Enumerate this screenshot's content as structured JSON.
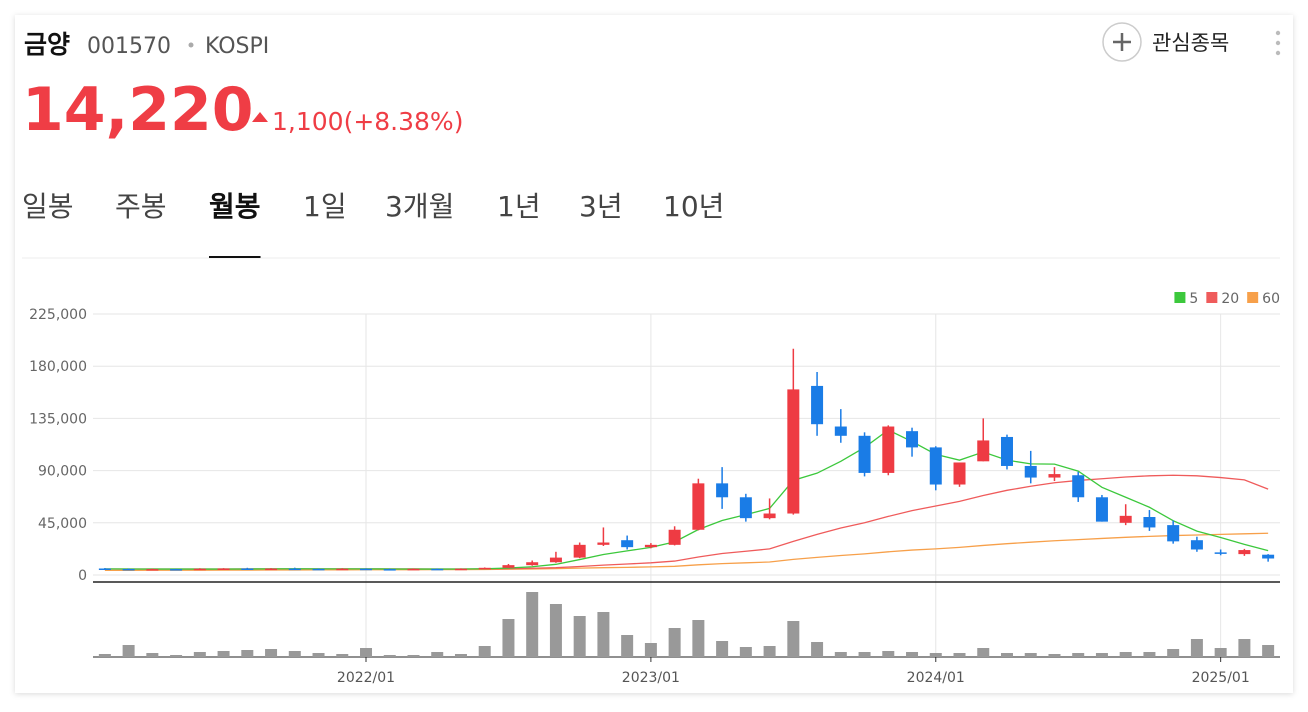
{
  "header": {
    "name": "금양",
    "code": "001570",
    "market": "KOSPI",
    "price": "14,220",
    "change": "1,100(+8.38%)",
    "watch_button": "관심종목"
  },
  "tabs": {
    "items": [
      "일봉",
      "주봉",
      "월봉",
      "1일",
      "3개월",
      "1년",
      "3년",
      "10년"
    ],
    "active": 2
  },
  "chart_data": {
    "type": "candlestick",
    "categories": [
      null,
      null,
      null,
      null,
      null,
      null,
      null,
      null,
      null,
      null,
      null,
      "2022/01",
      null,
      null,
      null,
      null,
      null,
      null,
      null,
      null,
      null,
      null,
      null,
      "2023/01",
      null,
      null,
      null,
      null,
      null,
      null,
      null,
      null,
      null,
      null,
      null,
      "2024/01",
      null,
      null,
      null,
      null,
      null,
      null,
      null,
      null,
      null,
      null,
      null,
      "2025/01",
      null,
      null
    ],
    "open": [
      5600,
      5200,
      4800,
      5100,
      4900,
      5400,
      5600,
      5300,
      5500,
      5300,
      5000,
      5400,
      5100,
      5000,
      5300,
      5000,
      5400,
      6200,
      8500,
      11000,
      15000,
      26000,
      30000,
      24000,
      26000,
      39000,
      79000,
      67000,
      49000,
      53000,
      163000,
      128000,
      120000,
      88000,
      124000,
      110000,
      78000,
      98000,
      119000,
      94000,
      84000,
      86000,
      67000,
      45000,
      50000,
      43000,
      30000,
      19500,
      18000,
      17500
    ],
    "high": [
      6000,
      5600,
      5400,
      5300,
      5800,
      5900,
      6200,
      5900,
      6300,
      5600,
      5800,
      5700,
      5500,
      5600,
      5600,
      5700,
      6500,
      9500,
      12500,
      20000,
      28000,
      41000,
      34000,
      27500,
      42000,
      83000,
      93000,
      70000,
      66000,
      195000,
      175000,
      143000,
      123000,
      129000,
      127000,
      111000,
      97000,
      135000,
      121000,
      107000,
      93000,
      89000,
      69000,
      61000,
      56000,
      47000,
      33000,
      22000,
      22500,
      18000
    ],
    "low": [
      4800,
      4500,
      4600,
      4700,
      4800,
      5000,
      5100,
      5000,
      5200,
      4900,
      4900,
      5000,
      4800,
      4800,
      4900,
      4800,
      5200,
      6000,
      8000,
      10500,
      14500,
      25000,
      22000,
      23000,
      25500,
      38500,
      57000,
      46000,
      48000,
      52000,
      120000,
      114000,
      85000,
      86000,
      102000,
      73000,
      76000,
      98000,
      91000,
      79000,
      81000,
      63000,
      46000,
      43000,
      38000,
      27000,
      20000,
      17000,
      16500,
      11500
    ],
    "close": [
      5200,
      4800,
      5100,
      4900,
      5400,
      5600,
      5300,
      5500,
      5300,
      5000,
      5400,
      5100,
      5000,
      5300,
      5000,
      5400,
      6200,
      8500,
      11000,
      15000,
      26000,
      28000,
      24000,
      26000,
      39000,
      79000,
      67000,
      49000,
      53000,
      160000,
      130000,
      120000,
      88000,
      128000,
      110000,
      78000,
      97000,
      116000,
      94000,
      84000,
      87000,
      67000,
      46000,
      51000,
      41000,
      29000,
      22000,
      18500,
      21500,
      14220
    ],
    "up_color": "#ee3b43",
    "down_color": "#1a7ce6",
    "series": [
      {
        "name": "5",
        "color": "#3cc83c",
        "values": [
          5300,
          5200,
          5100,
          5100,
          5100,
          5100,
          5200,
          5300,
          5400,
          5300,
          5300,
          5300,
          5200,
          5100,
          5100,
          5200,
          5400,
          6000,
          7100,
          9200,
          13300,
          17700,
          20800,
          23800,
          28600,
          39200,
          47000,
          52000,
          57400,
          81600,
          87800,
          98000,
          110000,
          125000,
          115000,
          104000,
          99000,
          106000,
          99000,
          95800,
          95600,
          89600,
          75600,
          67000,
          58400,
          46800,
          37800,
          32300,
          26400,
          21000
        ]
      },
      {
        "name": "20",
        "color": "#ef5b5b",
        "values": [
          5200,
          5200,
          5150,
          5150,
          5200,
          5200,
          5250,
          5250,
          5300,
          5300,
          5300,
          5300,
          5250,
          5250,
          5200,
          5200,
          5300,
          5500,
          5800,
          6300,
          7300,
          8500,
          9500,
          10500,
          12000,
          15500,
          18500,
          20500,
          22500,
          29000,
          35000,
          40500,
          45000,
          50500,
          55500,
          59500,
          63500,
          68500,
          73000,
          76500,
          79500,
          81500,
          83000,
          84500,
          85500,
          86000,
          85500,
          84000,
          82000,
          74000
        ]
      },
      {
        "name": "60",
        "color": "#f7a04a",
        "values": [
          4000,
          4050,
          4100,
          4100,
          4150,
          4200,
          4250,
          4300,
          4350,
          4400,
          4450,
          4500,
          4550,
          4600,
          4650,
          4700,
          4800,
          5000,
          5200,
          5500,
          5900,
          6300,
          6600,
          7000,
          7500,
          8800,
          9800,
          10500,
          11200,
          13500,
          15200,
          16800,
          18200,
          20000,
          21500,
          22500,
          23800,
          25500,
          27000,
          28300,
          29500,
          30500,
          31500,
          32500,
          33300,
          34000,
          34500,
          35000,
          35500,
          36000
        ]
      }
    ],
    "volume": {
      "color": "#999999",
      "values": [
        300000,
        1200000,
        400000,
        200000,
        500000,
        600000,
        700000,
        800000,
        600000,
        400000,
        300000,
        900000,
        200000,
        200000,
        500000,
        300000,
        1100000,
        3800000,
        6500000,
        5300000,
        4100000,
        4500000,
        2200000,
        1400000,
        2900000,
        3700000,
        1600000,
        1000000,
        1100000,
        3600000,
        1500000,
        500000,
        500000,
        600000,
        500000,
        400000,
        400000,
        900000,
        400000,
        400000,
        300000,
        400000,
        400000,
        500000,
        500000,
        800000,
        1800000,
        900000,
        1800000,
        1200000
      ]
    },
    "ylim": [
      0,
      225000
    ],
    "yticks": [
      0,
      {
        "value": 45000,
        "label": "45,000"
      },
      {
        "value": 90000,
        "label": "90,000"
      },
      {
        "value": 135000,
        "label": "135,000"
      },
      {
        "value": 180000,
        "label": "180,000"
      },
      {
        "value": 225000,
        "label": "225,000"
      }
    ],
    "grid": true,
    "legend": "top-right"
  }
}
